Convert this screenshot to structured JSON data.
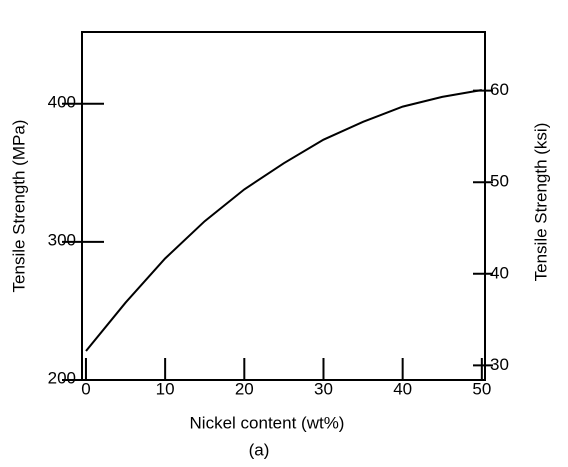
{
  "chart_data": {
    "type": "line",
    "xlabel": "Nickel content (wt%)",
    "ylabel": "Tensile Strength (MPa)",
    "y2label": "Tensile Strength (ksi)",
    "caption": "(a)",
    "x": [
      0,
      5,
      10,
      15,
      20,
      25,
      30,
      35,
      40,
      45,
      50
    ],
    "values": [
      221,
      256,
      288,
      315,
      338,
      357,
      374,
      387,
      398,
      405,
      410
    ],
    "color": "#000000",
    "xlim": [
      -0.5,
      50.4
    ],
    "xticks": [
      0,
      10,
      20,
      30,
      40,
      50
    ],
    "ylim": [
      200,
      452
    ],
    "yticks": [
      200,
      300,
      400
    ],
    "y2lim": [
      28.4,
      66.4
    ],
    "y2ticks": [
      30,
      40,
      50,
      60
    ]
  }
}
